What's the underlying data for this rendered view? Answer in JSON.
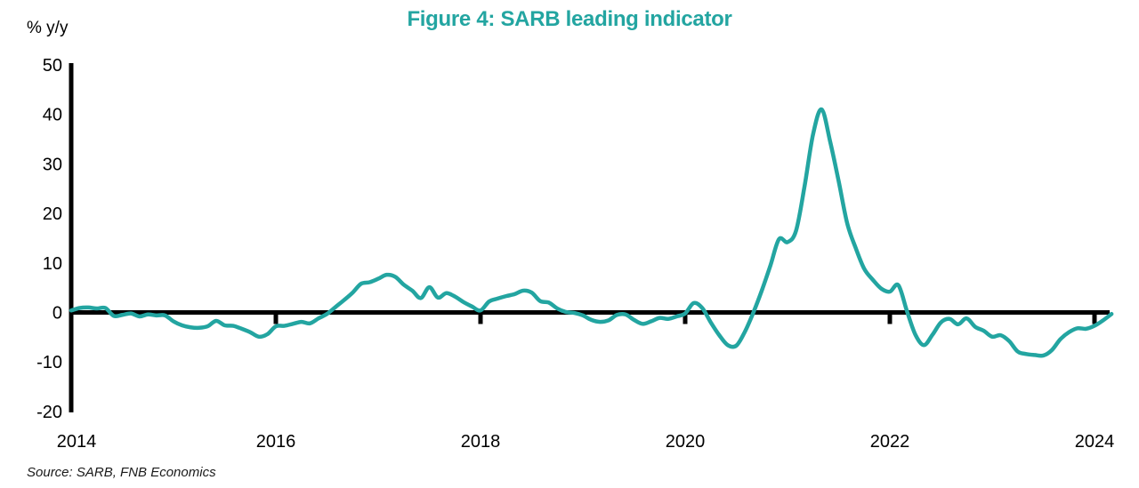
{
  "chart": {
    "title": "Figure 4: SARB leading indicator",
    "unit_label": "% y/y",
    "source": "Source: SARB, FNB Economics"
  },
  "chart_data": {
    "type": "line",
    "title": "Figure 4: SARB leading indicator",
    "ylabel": "% y/y",
    "xlabel": "",
    "source": "Source: SARB, FNB Economics",
    "grid": false,
    "legend_position": "none",
    "ylim": [
      -20,
      50
    ],
    "xlim": [
      2014,
      2024.3
    ],
    "y_ticks": [
      50,
      40,
      30,
      20,
      10,
      0,
      -10,
      -20
    ],
    "x_ticks": [
      2014,
      2016,
      2018,
      2020,
      2022,
      2024
    ],
    "accent_color": "#23a5a1",
    "axis_color": "#000000",
    "series": [
      {
        "name": "SARB leading indicator",
        "unit": "% y/y",
        "frequency": "monthly",
        "start": "2014-01",
        "end": "2024-03",
        "color": "#23a5a1",
        "values": [
          0.4,
          0.9,
          1.0,
          0.8,
          0.9,
          -0.7,
          -0.5,
          -0.2,
          -0.8,
          -0.4,
          -0.6,
          -0.6,
          -1.8,
          -2.6,
          -3.0,
          -3.1,
          -2.8,
          -1.7,
          -2.6,
          -2.7,
          -3.3,
          -4.0,
          -4.9,
          -4.4,
          -2.8,
          -2.7,
          -2.3,
          -1.9,
          -2.2,
          -1.2,
          -0.3,
          1.1,
          2.5,
          4.0,
          5.8,
          6.1,
          6.8,
          7.6,
          7.2,
          5.6,
          4.4,
          2.9,
          5.1,
          3.0,
          3.9,
          3.2,
          2.1,
          1.2,
          0.4,
          2.2,
          2.8,
          3.3,
          3.7,
          4.4,
          4.0,
          2.3,
          2.0,
          0.8,
          0.1,
          -0.1,
          -0.6,
          -1.5,
          -1.9,
          -1.6,
          -0.5,
          -0.4,
          -1.5,
          -2.3,
          -1.8,
          -1.1,
          -1.3,
          -0.8,
          -0.2,
          1.9,
          0.9,
          -2.0,
          -4.6,
          -6.6,
          -6.7,
          -3.9,
          0.0,
          4.5,
          9.5,
          14.8,
          14.2,
          16.5,
          25.5,
          36.0,
          41.0,
          34.5,
          26.5,
          18.0,
          13.0,
          8.8,
          6.6,
          4.8,
          4.2,
          5.5,
          0.3,
          -4.5,
          -6.6,
          -4.5,
          -2.0,
          -1.3,
          -2.4,
          -1.2,
          -2.9,
          -3.7,
          -4.9,
          -4.6,
          -5.8,
          -7.9,
          -8.4,
          -8.6,
          -8.7,
          -7.6,
          -5.4,
          -4.0,
          -3.2,
          -3.3,
          -2.7,
          -1.6,
          -0.3
        ]
      }
    ]
  }
}
